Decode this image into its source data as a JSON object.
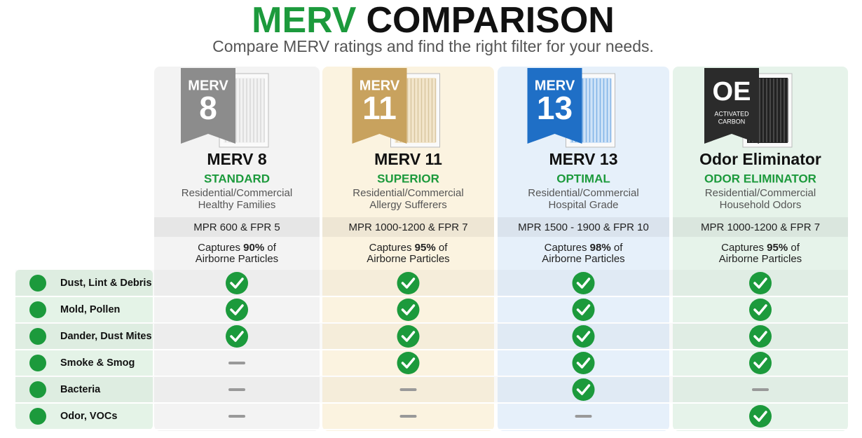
{
  "header": {
    "title_accent": "MERV",
    "title_main": "COMPARISON",
    "subtitle": "Compare MERV ratings and find the right filter for your needs."
  },
  "columns": [
    {
      "badge_top": "MERV",
      "badge_main": "8",
      "badge_sub": [],
      "name": "MERV 8",
      "tier": "STANDARD",
      "uses": [
        "Residential/Commercial",
        "Healthy Families"
      ],
      "mpr": "MPR 600 & FPR 5",
      "capture_prefix": "Captures",
      "capture_pct": "90%",
      "capture_suffix": "of",
      "capture_line2": "Airborne Particles"
    },
    {
      "badge_top": "MERV",
      "badge_main": "11",
      "badge_sub": [],
      "name": "MERV 11",
      "tier": "SUPERIOR",
      "uses": [
        "Residential/Commercial",
        "Allergy Sufferers"
      ],
      "mpr": "MPR 1000-1200 & FPR 7",
      "capture_prefix": "Captures",
      "capture_pct": "95%",
      "capture_suffix": "of",
      "capture_line2": "Airborne Particles"
    },
    {
      "badge_top": "MERV",
      "badge_main": "13",
      "badge_sub": [],
      "name": "MERV 13",
      "tier": "OPTIMAL",
      "uses": [
        "Residential/Commercial",
        "Hospital Grade"
      ],
      "mpr": "MPR 1500 - 1900 & FPR 10",
      "capture_prefix": "Captures",
      "capture_pct": "98%",
      "capture_suffix": "of",
      "capture_line2": "Airborne Particles"
    },
    {
      "badge_top": "",
      "badge_main": "OE",
      "badge_sub": [
        "ACTIVATED",
        "CARBON"
      ],
      "name": "Odor Eliminator",
      "tier": "ODOR ELIMINATOR",
      "uses": [
        "Residential/Commercial",
        "Household Odors"
      ],
      "mpr": "MPR 1000-1200 & FPR 7",
      "capture_prefix": "Captures",
      "capture_pct": "95%",
      "capture_suffix": "of",
      "capture_line2": "Airborne Particles"
    }
  ],
  "rows": [
    {
      "label": "Dust, Lint & Debris",
      "cells": [
        true,
        true,
        true,
        true
      ]
    },
    {
      "label": "Mold, Pollen",
      "cells": [
        true,
        true,
        true,
        true
      ]
    },
    {
      "label": "Dander, Dust Mites",
      "cells": [
        true,
        true,
        true,
        true
      ]
    },
    {
      "label": "Smoke & Smog",
      "cells": [
        false,
        true,
        true,
        true
      ]
    },
    {
      "label": "Bacteria",
      "cells": [
        false,
        false,
        true,
        false
      ]
    },
    {
      "label": "Odor, VOCs",
      "cells": [
        false,
        false,
        false,
        true
      ]
    }
  ]
}
